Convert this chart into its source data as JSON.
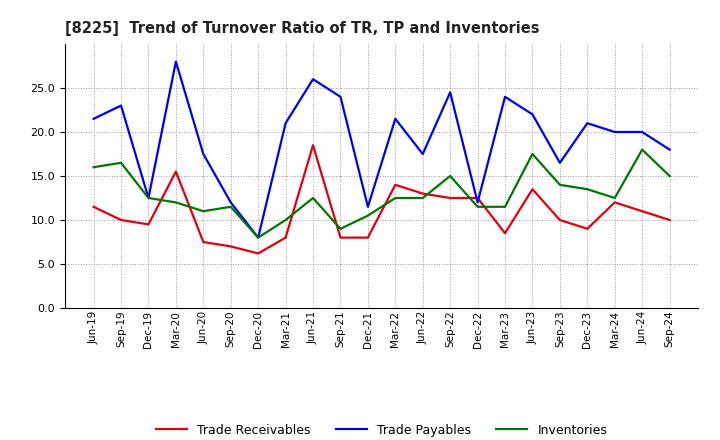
{
  "title": "[8225]  Trend of Turnover Ratio of TR, TP and Inventories",
  "labels": [
    "Jun-19",
    "Sep-19",
    "Dec-19",
    "Mar-20",
    "Jun-20",
    "Sep-20",
    "Dec-20",
    "Mar-21",
    "Jun-21",
    "Sep-21",
    "Dec-21",
    "Mar-22",
    "Jun-22",
    "Sep-22",
    "Dec-22",
    "Mar-23",
    "Jun-23",
    "Sep-23",
    "Dec-23",
    "Mar-24",
    "Jun-24",
    "Sep-24"
  ],
  "trade_receivables": [
    11.5,
    10.0,
    9.5,
    15.5,
    7.5,
    7.0,
    6.2,
    8.0,
    18.5,
    8.0,
    8.0,
    14.0,
    13.0,
    12.5,
    12.5,
    8.5,
    13.5,
    10.0,
    9.0,
    12.0,
    11.0,
    10.0
  ],
  "trade_payables": [
    21.5,
    23.0,
    12.5,
    28.0,
    17.5,
    12.0,
    8.0,
    21.0,
    26.0,
    24.0,
    11.5,
    21.5,
    17.5,
    24.5,
    12.0,
    24.0,
    22.0,
    16.5,
    21.0,
    20.0,
    20.0,
    18.0
  ],
  "inventories": [
    16.0,
    16.5,
    12.5,
    12.0,
    11.0,
    11.5,
    8.0,
    10.0,
    12.5,
    9.0,
    10.5,
    12.5,
    12.5,
    15.0,
    11.5,
    11.5,
    17.5,
    14.0,
    13.5,
    12.5,
    18.0,
    15.0
  ],
  "ylim": [
    0,
    30
  ],
  "yticks": [
    0.0,
    5.0,
    10.0,
    15.0,
    20.0,
    25.0
  ],
  "line_colors": {
    "trade_receivables": "#dd0011",
    "trade_payables": "#0000ee",
    "inventories": "#007700"
  },
  "legend_labels": [
    "Trade Receivables",
    "Trade Payables",
    "Inventories"
  ],
  "background_color": "#ffffff",
  "grid_color": "#999999",
  "linewidth": 1.6
}
